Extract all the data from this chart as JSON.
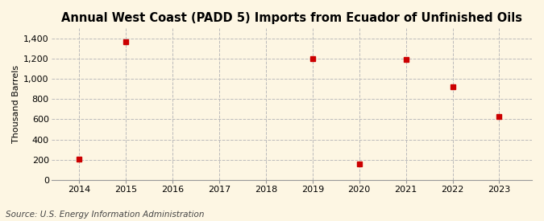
{
  "title": "Annual West Coast (PADD 5) Imports from Ecuador of Unfinished Oils",
  "ylabel": "Thousand Barrels",
  "source": "Source: U.S. Energy Information Administration",
  "years": [
    2014,
    2015,
    2016,
    2017,
    2018,
    2019,
    2020,
    2021,
    2022,
    2023
  ],
  "values": [
    205,
    1371,
    null,
    null,
    null,
    1197,
    160,
    1189,
    924,
    626
  ],
  "xlim": [
    2013.4,
    2023.7
  ],
  "ylim": [
    0,
    1500
  ],
  "yticks": [
    0,
    200,
    400,
    600,
    800,
    1000,
    1200,
    1400
  ],
  "ytick_labels": [
    "0",
    "200",
    "400",
    "600",
    "800",
    "1,000",
    "1,200",
    "1,400"
  ],
  "xticks": [
    2014,
    2015,
    2016,
    2017,
    2018,
    2019,
    2020,
    2021,
    2022,
    2023
  ],
  "marker_color": "#cc0000",
  "marker_size": 4.5,
  "background_color": "#fdf6e3",
  "grid_color": "#bbbbbb",
  "title_fontsize": 10.5,
  "axis_fontsize": 8,
  "ylabel_fontsize": 8,
  "source_fontsize": 7.5
}
